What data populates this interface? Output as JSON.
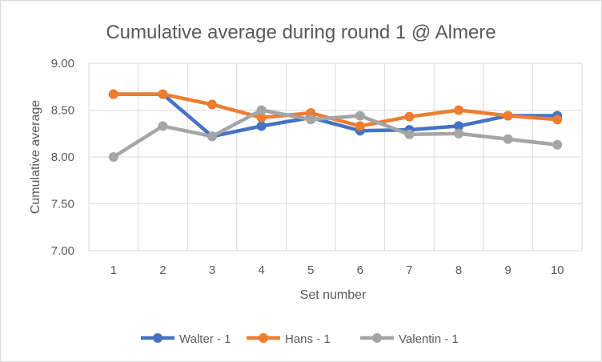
{
  "chart_data": {
    "type": "line",
    "title": "Cumulative average during round 1 @ Almere",
    "xlabel": "Set number",
    "ylabel": "Cumulative average",
    "categories": [
      "1",
      "2",
      "3",
      "4",
      "5",
      "6",
      "7",
      "8",
      "9",
      "10"
    ],
    "ylim": [
      7.0,
      9.0
    ],
    "yticks": [
      "7.00",
      "7.50",
      "8.00",
      "8.50",
      "9.00"
    ],
    "grid": true,
    "legend_position": "bottom",
    "series": [
      {
        "name": "Walter - 1",
        "color": "#4472C4",
        "values": [
          8.67,
          8.67,
          8.22,
          8.33,
          8.42,
          8.28,
          8.29,
          8.33,
          8.44,
          8.44
        ]
      },
      {
        "name": "Hans - 1",
        "color": "#ED7D31",
        "values": [
          8.67,
          8.67,
          8.56,
          8.42,
          8.47,
          8.33,
          8.43,
          8.5,
          8.44,
          8.4
        ]
      },
      {
        "name": "Valentin - 1",
        "color": "#A5A5A5",
        "values": [
          8.0,
          8.33,
          8.22,
          8.5,
          8.4,
          8.44,
          8.24,
          8.25,
          8.19,
          8.13
        ]
      }
    ]
  }
}
